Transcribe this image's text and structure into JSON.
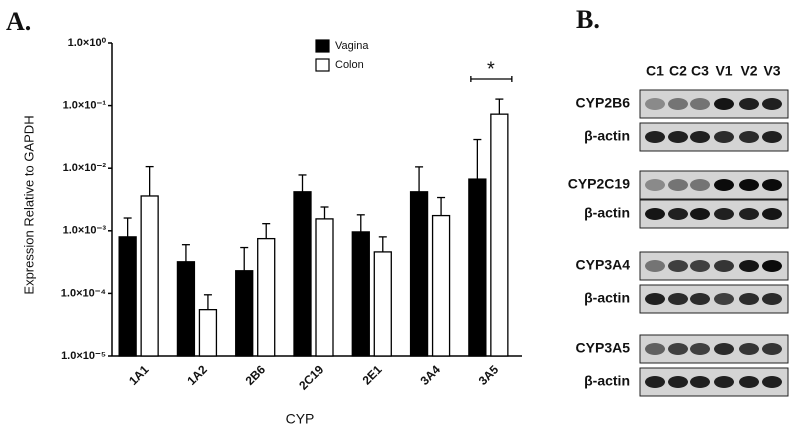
{
  "panel_a_label": "A.",
  "chart_data": {
    "type": "bar",
    "yscale": "log",
    "x_label": "CYP",
    "y_label": "Expression  Relative to  GAPDH",
    "categories": [
      "1A1",
      "1A2",
      "2B6",
      "2C19",
      "2E1",
      "3A4",
      "3A5"
    ],
    "series": [
      {
        "name": "Vagina",
        "color": "#000000",
        "values": [
          0.0008,
          0.00032,
          0.00023,
          0.0042,
          0.00096,
          0.0042,
          0.0067
        ],
        "errors": [
          0.0008,
          0.00028,
          0.00031,
          0.0036,
          0.00084,
          0.0063,
          0.022
        ]
      },
      {
        "name": "Colon",
        "color": "#ffffff",
        "values": [
          0.0036,
          5.5e-05,
          0.00075,
          0.00155,
          0.00046,
          0.00175,
          0.073
        ],
        "errors": [
          0.007,
          4e-05,
          0.00055,
          0.00085,
          0.00034,
          0.00165,
          0.054
        ]
      }
    ],
    "ylim": [
      1e-05,
      1
    ],
    "yticks": [
      {
        "value": 1e-05,
        "label": "1.0×10⁻⁵"
      },
      {
        "value": 0.0001,
        "label": "1.0×10⁻⁴"
      },
      {
        "value": 0.001,
        "label": "1.0×10⁻³"
      },
      {
        "value": 0.01,
        "label": "1.0×10⁻²"
      },
      {
        "value": 0.1,
        "label": "1.0×10⁻¹"
      },
      {
        "value": 1,
        "label": "1.0×10⁰"
      }
    ],
    "annotation": "*"
  },
  "blot": {
    "label": "B.",
    "lanes": [
      "C1",
      "C2",
      "C3",
      "V1",
      "V2",
      "V3"
    ],
    "rows": [
      "CYP2B6",
      "β-actin",
      "CYP2C19",
      "β-actin",
      "CYP3A4",
      "β-actin",
      "CYP3A5",
      "β-actin"
    ]
  }
}
